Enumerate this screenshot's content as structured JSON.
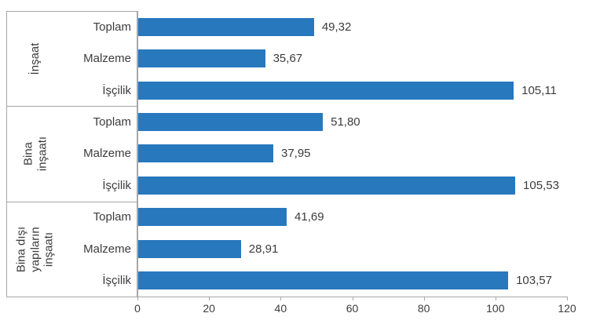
{
  "chart_data": {
    "type": "bar",
    "orientation": "horizontal",
    "title": "",
    "xlabel": "",
    "ylabel": "",
    "xlim": [
      0,
      120
    ],
    "x_ticks": [
      0,
      20,
      40,
      60,
      80,
      100,
      120
    ],
    "x_tick_labels": [
      "0",
      "20",
      "40",
      "60",
      "80",
      "100",
      "120"
    ],
    "grid": false,
    "legend": false,
    "bar_color": "#2878BE",
    "axis_color": "#A6A6A6",
    "text_color": "#3C3C3C",
    "groups": [
      {
        "label": "İnşaat",
        "label_lines": "İnşaat",
        "rows": [
          {
            "category": "Toplam",
            "value": 49.32,
            "value_label": "49,32"
          },
          {
            "category": "Malzeme",
            "value": 35.67,
            "value_label": "35,67"
          },
          {
            "category": "İşçilik",
            "value": 105.11,
            "value_label": "105,11"
          }
        ]
      },
      {
        "label": "Bina inşaatı",
        "label_lines": "Bina\ninşaatı",
        "rows": [
          {
            "category": "Toplam",
            "value": 51.8,
            "value_label": "51,80"
          },
          {
            "category": "Malzeme",
            "value": 37.95,
            "value_label": "37,95"
          },
          {
            "category": "İşçilik",
            "value": 105.53,
            "value_label": "105,53"
          }
        ]
      },
      {
        "label": "Bina dışı yapıların inşaatı",
        "label_lines": "Bina dışı\nyapıların\ninşaatı",
        "rows": [
          {
            "category": "Toplam",
            "value": 41.69,
            "value_label": "41,69"
          },
          {
            "category": "Malzeme",
            "value": 28.91,
            "value_label": "28,91"
          },
          {
            "category": "İşçilik",
            "value": 103.57,
            "value_label": "103,57"
          }
        ]
      }
    ]
  }
}
